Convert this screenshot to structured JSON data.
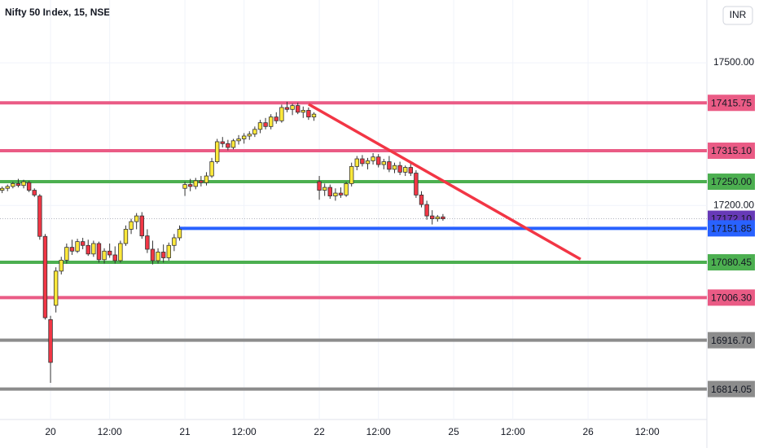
{
  "chart_data": {
    "type": "candlestick",
    "title": "Nifty 50 Index, 15, NSE",
    "currency": "INR",
    "xlim": [
      -9.4,
      122.1
    ],
    "ylim": [
      16750,
      17632
    ],
    "grid": true,
    "up_color": "#ffe93b",
    "down_color": "#f23645",
    "xticks": [
      {
        "value": 0,
        "label": "20"
      },
      {
        "value": 11,
        "label": "12:00"
      },
      {
        "value": 25,
        "label": "21"
      },
      {
        "value": 36,
        "label": "12:00"
      },
      {
        "value": 50,
        "label": "22"
      },
      {
        "value": 61,
        "label": "12:00"
      },
      {
        "value": 75,
        "label": "25"
      },
      {
        "value": 86,
        "label": "12:00"
      },
      {
        "value": 100,
        "label": "26"
      },
      {
        "value": 111,
        "label": "12:00"
      }
    ],
    "yticks": [
      {
        "value": 17200,
        "label": "17200.00"
      },
      {
        "value": 17500,
        "label": "17500.00"
      }
    ],
    "x": [
      -9,
      -8,
      -7,
      -6,
      -5,
      -4,
      -3,
      -2,
      -1,
      0,
      1,
      2,
      3,
      4,
      5,
      6,
      7,
      8,
      9,
      10,
      11,
      12,
      13,
      14,
      15,
      16,
      17,
      18,
      19,
      20,
      21,
      22,
      23,
      24,
      25,
      26,
      27,
      28,
      29,
      30,
      31,
      32,
      33,
      34,
      35,
      36,
      37,
      38,
      39,
      40,
      41,
      42,
      43,
      44,
      45,
      46,
      47,
      48,
      49,
      50,
      51,
      52,
      53,
      54,
      55,
      56,
      57,
      58,
      59,
      60,
      61,
      62,
      63,
      64,
      65,
      66,
      67,
      68,
      69,
      70,
      71,
      72,
      73
    ],
    "candles": [
      [
        17232,
        17240,
        17226,
        17236
      ],
      [
        17236,
        17244,
        17230,
        17240
      ],
      [
        17240,
        17250,
        17236,
        17246
      ],
      [
        17246,
        17256,
        17238,
        17242
      ],
      [
        17242,
        17254,
        17236,
        17250
      ],
      [
        17248,
        17252,
        17228,
        17232
      ],
      [
        17232,
        17236,
        17218,
        17222
      ],
      [
        17220,
        17224,
        17128,
        17135
      ],
      [
        17135,
        17140,
        16960,
        16964
      ],
      [
        16960,
        16968,
        16827,
        16870
      ],
      [
        16990,
        17070,
        16975,
        17062
      ],
      [
        17062,
        17092,
        17055,
        17085
      ],
      [
        17085,
        17120,
        17078,
        17112
      ],
      [
        17112,
        17128,
        17096,
        17104
      ],
      [
        17104,
        17130,
        17100,
        17124
      ],
      [
        17124,
        17132,
        17108,
        17116
      ],
      [
        17116,
        17128,
        17094,
        17098
      ],
      [
        17098,
        17126,
        17092,
        17120
      ],
      [
        17120,
        17124,
        17080,
        17086
      ],
      [
        17086,
        17110,
        17078,
        17104
      ],
      [
        17104,
        17120,
        17090,
        17096
      ],
      [
        17096,
        17114,
        17078,
        17084
      ],
      [
        17084,
        17126,
        17080,
        17120
      ],
      [
        17120,
        17158,
        17115,
        17150
      ],
      [
        17150,
        17172,
        17140,
        17166
      ],
      [
        17166,
        17184,
        17150,
        17178
      ],
      [
        17178,
        17186,
        17130,
        17136
      ],
      [
        17136,
        17150,
        17100,
        17108
      ],
      [
        17108,
        17126,
        17076,
        17084
      ],
      [
        17084,
        17110,
        17078,
        17102
      ],
      [
        17102,
        17118,
        17080,
        17090
      ],
      [
        17090,
        17122,
        17084,
        17116
      ],
      [
        17116,
        17140,
        17104,
        17132
      ],
      [
        17132,
        17158,
        17126,
        17150
      ],
      [
        17236,
        17250,
        17220,
        17244
      ],
      [
        17244,
        17256,
        17230,
        17240
      ],
      [
        17240,
        17258,
        17234,
        17252
      ],
      [
        17252,
        17262,
        17240,
        17248
      ],
      [
        17248,
        17270,
        17242,
        17262
      ],
      [
        17262,
        17300,
        17258,
        17292
      ],
      [
        17292,
        17340,
        17288,
        17334
      ],
      [
        17334,
        17344,
        17322,
        17330
      ],
      [
        17330,
        17338,
        17316,
        17322
      ],
      [
        17322,
        17340,
        17318,
        17336
      ],
      [
        17336,
        17348,
        17328,
        17340
      ],
      [
        17340,
        17352,
        17330,
        17346
      ],
      [
        17346,
        17356,
        17338,
        17350
      ],
      [
        17350,
        17366,
        17344,
        17360
      ],
      [
        17360,
        17380,
        17352,
        17374
      ],
      [
        17374,
        17384,
        17360,
        17366
      ],
      [
        17366,
        17392,
        17360,
        17386
      ],
      [
        17386,
        17396,
        17372,
        17378
      ],
      [
        17378,
        17412,
        17374,
        17406
      ],
      [
        17406,
        17418,
        17396,
        17402
      ],
      [
        17402,
        17414,
        17390,
        17410
      ],
      [
        17410,
        17416,
        17392,
        17396
      ],
      [
        17396,
        17408,
        17384,
        17400
      ],
      [
        17400,
        17406,
        17380,
        17386
      ],
      [
        17386,
        17396,
        17378,
        17392
      ],
      [
        17250,
        17262,
        17212,
        17232
      ],
      [
        17232,
        17246,
        17220,
        17238
      ],
      [
        17238,
        17244,
        17214,
        17220
      ],
      [
        17220,
        17236,
        17210,
        17226
      ],
      [
        17226,
        17238,
        17216,
        17222
      ],
      [
        17222,
        17250,
        17218,
        17246
      ],
      [
        17246,
        17290,
        17240,
        17282
      ],
      [
        17282,
        17304,
        17274,
        17298
      ],
      [
        17298,
        17306,
        17282,
        17288
      ],
      [
        17288,
        17300,
        17276,
        17294
      ],
      [
        17294,
        17310,
        17286,
        17302
      ],
      [
        17302,
        17308,
        17280,
        17286
      ],
      [
        17286,
        17298,
        17276,
        17292
      ],
      [
        17292,
        17304,
        17270,
        17276
      ],
      [
        17276,
        17290,
        17268,
        17284
      ],
      [
        17284,
        17292,
        17264,
        17270
      ],
      [
        17270,
        17284,
        17262,
        17280
      ],
      [
        17280,
        17290,
        17262,
        17268
      ],
      [
        17268,
        17274,
        17216,
        17222
      ],
      [
        17222,
        17230,
        17196,
        17202
      ],
      [
        17202,
        17210,
        17170,
        17178
      ],
      [
        17178,
        17190,
        17160,
        17172
      ],
      [
        17172,
        17180,
        17166,
        17176
      ],
      [
        17176,
        17182,
        17168,
        17172
      ]
    ],
    "levels": [
      {
        "value": 17415.75,
        "label": "17415.75",
        "color": "#ea5b85",
        "x_start": -9.4
      },
      {
        "value": 17315.1,
        "label": "17315.10",
        "color": "#ea5b85",
        "x_start": -9.4
      },
      {
        "value": 17250,
        "label": "17250.00",
        "color": "#4caf50",
        "x_start": -9.4
      },
      {
        "value": 17151.85,
        "label": "17151.85",
        "color": "#2962ff",
        "x_start": 24
      },
      {
        "value": 17080.45,
        "label": "17080.45",
        "color": "#4caf50",
        "x_start": -9.4
      },
      {
        "value": 17006.3,
        "label": "17006.30",
        "color": "#ea5b85",
        "x_start": -9.4
      },
      {
        "value": 16916.7,
        "label": "16916.70",
        "color": "#8c8c8c",
        "x_start": -9.4
      },
      {
        "value": 16814.05,
        "label": "16814.05",
        "color": "#8c8c8c",
        "x_start": -9.4
      }
    ],
    "last_price": {
      "value": 17172.1,
      "label": "17172.10",
      "color": "#673ab7"
    },
    "trendlines": [
      {
        "x": [
          48,
          98.6
        ],
        "y": [
          17413,
          17087
        ],
        "color": "#f23645"
      }
    ]
  }
}
